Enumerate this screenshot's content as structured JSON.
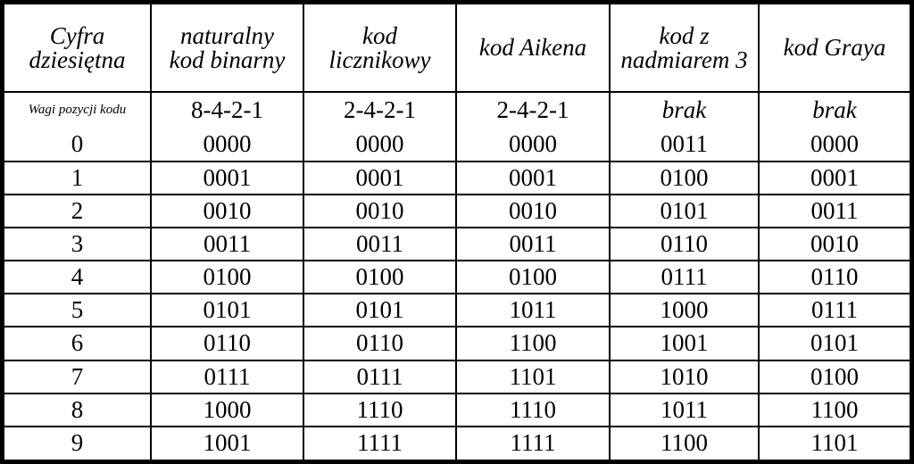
{
  "headers": [
    [
      "Cyfra",
      "dziesiętna"
    ],
    [
      "naturalny",
      "kod binarny"
    ],
    [
      "kod",
      "licznikowy"
    ],
    [
      "kod Aikena"
    ],
    [
      "kod z",
      "nadmiarem 3"
    ],
    [
      "kod Graya"
    ]
  ],
  "weights_label": "Wagi pozycji kodu",
  "weights": [
    "8-4-2-1",
    "2-4-2-1",
    "2-4-2-1",
    "brak",
    "brak"
  ],
  "rows": [
    [
      "0",
      "0000",
      "0000",
      "0000",
      "0011",
      "0000"
    ],
    [
      "1",
      "0001",
      "0001",
      "0001",
      "0100",
      "0001"
    ],
    [
      "2",
      "0010",
      "0010",
      "0010",
      "0101",
      "0011"
    ],
    [
      "3",
      "0011",
      "0011",
      "0011",
      "0110",
      "0010"
    ],
    [
      "4",
      "0100",
      "0100",
      "0100",
      "0111",
      "0110"
    ],
    [
      "5",
      "0101",
      "0101",
      "1011",
      "1000",
      "0111"
    ],
    [
      "6",
      "0110",
      "0110",
      "1100",
      "1001",
      "0101"
    ],
    [
      "7",
      "0111",
      "0111",
      "1101",
      "1010",
      "0100"
    ],
    [
      "8",
      "1000",
      "1110",
      "1110",
      "1011",
      "1100"
    ],
    [
      "9",
      "1001",
      "1111",
      "1111",
      "1100",
      "1101"
    ]
  ]
}
